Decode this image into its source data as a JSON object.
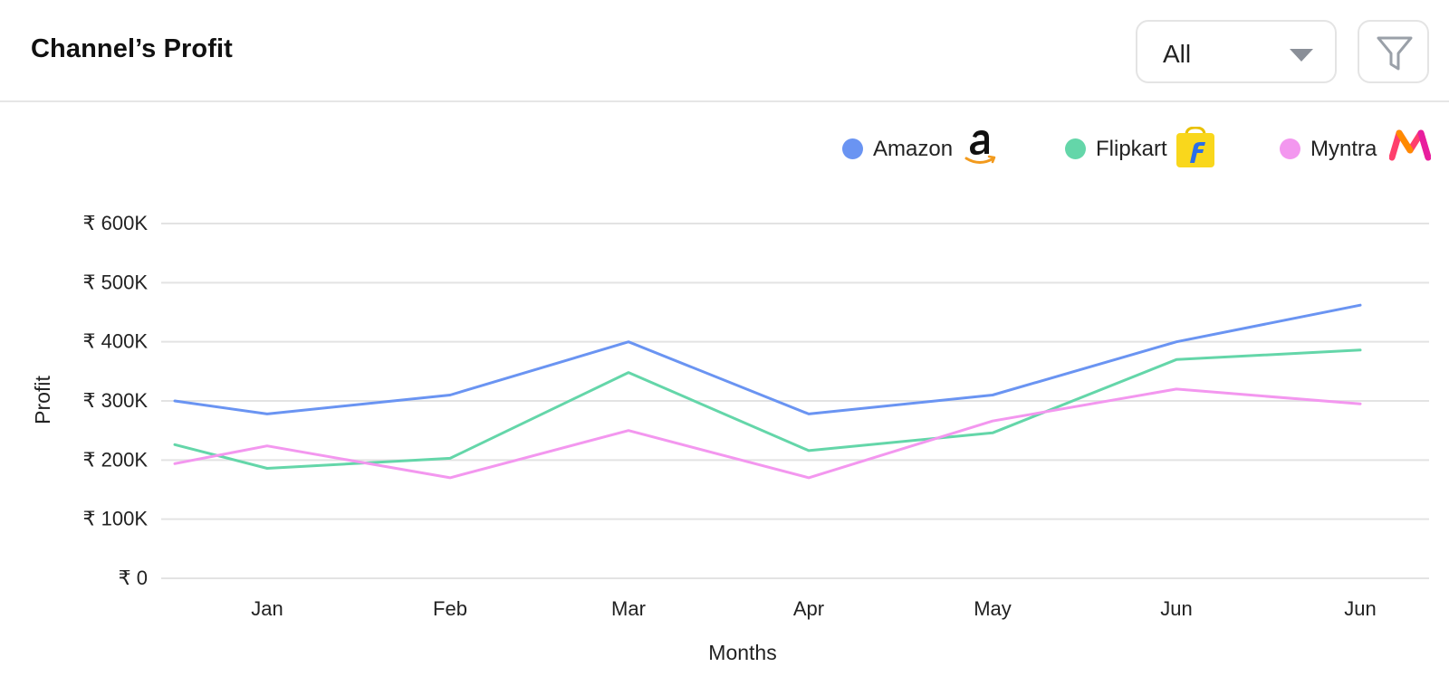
{
  "header": {
    "title": "Channel’s Profit",
    "filter_select": {
      "selected": "All"
    },
    "filter_button_icon": "funnel-icon"
  },
  "legend": [
    {
      "name": "Amazon",
      "color": "#6a94f2",
      "logo": "amazon-logo-icon"
    },
    {
      "name": "Flipkart",
      "color": "#64d6a9",
      "logo": "flipkart-logo-icon"
    },
    {
      "name": "Myntra",
      "color": "#f397ef",
      "logo": "myntra-logo-icon"
    }
  ],
  "chart_data": {
    "type": "line",
    "xlabel": "Months",
    "ylabel": "Profit",
    "categories": [
      "",
      "Jan",
      "Feb",
      "Mar",
      "Apr",
      "May",
      "Jun",
      "Jun"
    ],
    "y_ticks": [
      "₹ 0",
      "₹ 100K",
      "₹ 200K",
      "₹ 300K",
      "₹ 400K",
      "₹ 500K",
      "₹ 600K"
    ],
    "ylim": [
      0,
      600000
    ],
    "grid": true,
    "legend_position": "top-right",
    "series": [
      {
        "name": "Amazon",
        "color": "#6a94f2",
        "values": [
          300000,
          278000,
          310000,
          400000,
          278000,
          310000,
          400000,
          462000
        ]
      },
      {
        "name": "Flipkart",
        "color": "#64d6a9",
        "values": [
          226000,
          186000,
          203000,
          348000,
          216000,
          246000,
          370000,
          386000
        ]
      },
      {
        "name": "Myntra",
        "color": "#f397ef",
        "values": [
          194000,
          224000,
          170000,
          250000,
          170000,
          266000,
          320000,
          295000
        ]
      }
    ]
  }
}
